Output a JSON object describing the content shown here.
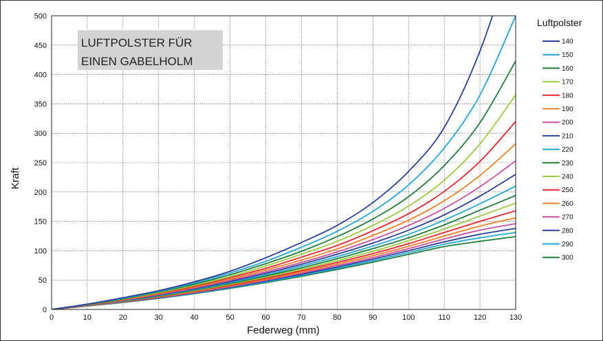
{
  "chart_data": {
    "type": "line",
    "title": "",
    "annotation": [
      "LUFTPOLSTER FÜR",
      "EINEN GABELHOLM"
    ],
    "xlabel": "Federweg (mm)",
    "ylabel": "Kraft",
    "xlim": [
      0,
      130
    ],
    "ylim": [
      0,
      500
    ],
    "xticks": [
      0,
      10,
      20,
      30,
      40,
      50,
      60,
      70,
      80,
      90,
      100,
      110,
      120,
      130
    ],
    "yticks": [
      0,
      50,
      100,
      150,
      200,
      250,
      300,
      350,
      400,
      450,
      500
    ],
    "grid": true,
    "legend_title": "Luftpolster",
    "legend_position": "right",
    "x": [
      0,
      10,
      20,
      30,
      40,
      50,
      60,
      70,
      80,
      90,
      100,
      110,
      120,
      130
    ],
    "series": [
      {
        "name": "140",
        "color": "#2b3f99",
        "values": [
          0,
          9,
          20,
          32,
          47,
          65,
          88,
          114,
          143,
          182,
          235,
          310,
          440,
          620
        ]
      },
      {
        "name": "150",
        "color": "#22a7dc",
        "values": [
          0,
          9,
          19,
          31,
          45,
          62,
          82,
          106,
          133,
          167,
          212,
          275,
          365,
          500
        ]
      },
      {
        "name": "160",
        "color": "#1e7d3a",
        "values": [
          0,
          8.5,
          18,
          30,
          43,
          59,
          78,
          99,
          124,
          154,
          192,
          245,
          318,
          423
        ]
      },
      {
        "name": "170",
        "color": "#9acb3c",
        "values": [
          0,
          8.2,
          17.5,
          28.5,
          41,
          56,
          74,
          94,
          116,
          143,
          176,
          220,
          282,
          365
        ]
      },
      {
        "name": "180",
        "color": "#e8252b",
        "values": [
          0,
          8,
          17,
          27.5,
          39.5,
          54,
          70,
          89,
          109,
          134,
          163,
          201,
          252,
          320
        ]
      },
      {
        "name": "190",
        "color": "#f07f22",
        "values": [
          0,
          7.7,
          16.3,
          26.5,
          38,
          51.5,
          67,
          84,
          103,
          126,
          152,
          185,
          228,
          282
        ]
      },
      {
        "name": "200",
        "color": "#cc4fa2",
        "values": [
          0,
          7.4,
          15.7,
          25.5,
          36.5,
          49.5,
          64,
          80,
          98,
          119,
          143,
          172,
          209,
          253
        ]
      },
      {
        "name": "210",
        "color": "#2b3f99",
        "values": [
          0,
          7.2,
          15.2,
          24.6,
          35.2,
          47.5,
          61.5,
          77,
          94,
          113,
          135,
          161,
          193,
          230
        ]
      },
      {
        "name": "220",
        "color": "#22a7dc",
        "values": [
          0,
          7,
          14.7,
          23.7,
          34,
          45.8,
          59,
          74,
          90,
          108,
          128,
          152,
          180,
          210
        ]
      },
      {
        "name": "230",
        "color": "#1e7d3a",
        "values": [
          0,
          6.8,
          14.3,
          23,
          32.8,
          44.2,
          57,
          71,
          86.5,
          103.5,
          122,
          144,
          169,
          194
        ]
      },
      {
        "name": "240",
        "color": "#9acb3c",
        "values": [
          0,
          6.6,
          13.9,
          22.3,
          31.8,
          42.8,
          55,
          68.5,
          83,
          99,
          117,
          137,
          159,
          181
        ]
      },
      {
        "name": "250",
        "color": "#e8252b",
        "values": [
          0,
          6.4,
          13.5,
          21.6,
          30.8,
          41.4,
          53,
          66,
          80,
          95,
          112,
          131,
          150,
          168
        ]
      },
      {
        "name": "260",
        "color": "#f07f22",
        "values": [
          0,
          6.2,
          13.1,
          21,
          29.9,
          40.1,
          51.3,
          63.8,
          77.2,
          91.6,
          107.5,
          125,
          142,
          156
        ]
      },
      {
        "name": "270",
        "color": "#cc4fa2",
        "values": [
          0,
          6.1,
          12.8,
          20.4,
          29,
          38.9,
          49.7,
          61.7,
          74.6,
          88.4,
          103.6,
          120,
          135,
          146
        ]
      },
      {
        "name": "280",
        "color": "#2b3f99",
        "values": [
          0,
          6,
          12.5,
          19.9,
          28.2,
          37.8,
          48.3,
          59.8,
          72.2,
          85.6,
          100,
          115,
          128,
          138
        ]
      },
      {
        "name": "290",
        "color": "#22a7dc",
        "values": [
          0,
          5.8,
          12.2,
          19.4,
          27.5,
          36.8,
          46.9,
          58.1,
          70,
          83,
          96.8,
          111,
          122,
          131
        ]
      },
      {
        "name": "300",
        "color": "#1e7d3a",
        "values": [
          0,
          5.7,
          11.9,
          18.9,
          26.8,
          35.8,
          45.6,
          56.4,
          68,
          80.5,
          93.8,
          107,
          116,
          124
        ]
      }
    ]
  }
}
